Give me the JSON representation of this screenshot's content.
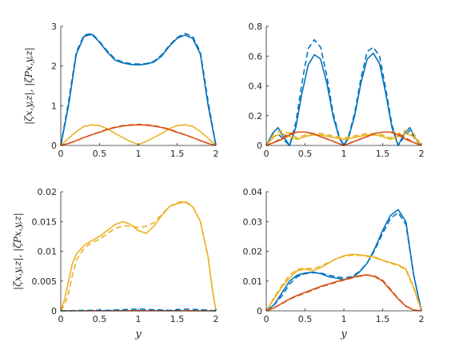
{
  "colors": {
    "blue": "#0072BD",
    "orange": "#D95319",
    "yellow": "#EDB120",
    "axis": "#262626"
  },
  "chart_data": [
    {
      "type": "line",
      "xlim": [
        0,
        2
      ],
      "ylim": [
        0,
        3
      ],
      "xticks": [
        "0",
        "0.5",
        "1",
        "1.5",
        "2"
      ],
      "yticks": [
        "0",
        "1",
        "2",
        "3"
      ],
      "ylabel": "|ζx,y,z|, |ζPx,y,z|",
      "xlabel": "",
      "series": [
        {
          "color": "blue",
          "dash": false,
          "x": [
            0,
            0.1,
            0.2,
            0.3,
            0.4,
            0.5,
            0.6,
            0.7,
            0.8,
            0.9,
            1,
            1.1,
            1.2,
            1.3,
            1.4,
            1.5,
            1.6,
            1.7,
            1.8,
            1.9,
            2
          ],
          "y": [
            0,
            1.0,
            2.3,
            2.75,
            2.8,
            2.6,
            2.35,
            2.15,
            2.08,
            2.04,
            2.03,
            2.05,
            2.1,
            2.25,
            2.5,
            2.7,
            2.78,
            2.7,
            2.3,
            1.0,
            0
          ]
        },
        {
          "color": "blue",
          "dash": true,
          "x": [
            0,
            0.1,
            0.2,
            0.3,
            0.4,
            0.5,
            0.6,
            0.7,
            0.8,
            0.9,
            1,
            1.1,
            1.2,
            1.3,
            1.4,
            1.5,
            1.6,
            1.7,
            1.8,
            1.9,
            2
          ],
          "y": [
            0,
            1.1,
            2.35,
            2.78,
            2.82,
            2.62,
            2.38,
            2.18,
            2.1,
            2.06,
            2.05,
            2.06,
            2.12,
            2.28,
            2.52,
            2.72,
            2.82,
            2.75,
            2.35,
            1.1,
            0
          ]
        },
        {
          "color": "yellow",
          "dash": false,
          "x": [
            0,
            0.1,
            0.2,
            0.3,
            0.4,
            0.5,
            0.6,
            0.7,
            0.8,
            0.9,
            1,
            1.1,
            1.2,
            1.3,
            1.4,
            1.5,
            1.6,
            1.7,
            1.8,
            1.9,
            2
          ],
          "y": [
            0,
            0.18,
            0.35,
            0.48,
            0.52,
            0.5,
            0.42,
            0.3,
            0.2,
            0.1,
            0.02,
            0.1,
            0.2,
            0.3,
            0.42,
            0.5,
            0.52,
            0.48,
            0.35,
            0.18,
            0
          ]
        },
        {
          "color": "orange",
          "dash": false,
          "x": [
            0,
            0.1,
            0.2,
            0.3,
            0.4,
            0.5,
            0.6,
            0.7,
            0.8,
            0.9,
            1,
            1.1,
            1.2,
            1.3,
            1.4,
            1.5,
            1.6,
            1.7,
            1.8,
            1.9,
            2
          ],
          "y": [
            0,
            0.05,
            0.12,
            0.2,
            0.27,
            0.33,
            0.4,
            0.45,
            0.49,
            0.51,
            0.52,
            0.51,
            0.49,
            0.45,
            0.4,
            0.33,
            0.27,
            0.2,
            0.12,
            0.05,
            0
          ]
        },
        {
          "color": "orange",
          "dash": true,
          "x": [
            0,
            0.1,
            0.2,
            0.3,
            0.4,
            0.5,
            0.6,
            0.7,
            0.8,
            0.9,
            1,
            1.1,
            1.2,
            1.3,
            1.4,
            1.5,
            1.6,
            1.7,
            1.8,
            1.9,
            2
          ],
          "y": [
            0,
            0.05,
            0.12,
            0.2,
            0.27,
            0.34,
            0.41,
            0.46,
            0.5,
            0.52,
            0.53,
            0.52,
            0.5,
            0.46,
            0.41,
            0.34,
            0.27,
            0.2,
            0.12,
            0.05,
            0
          ]
        }
      ]
    },
    {
      "type": "line",
      "xlim": [
        0,
        2
      ],
      "ylim": [
        0,
        0.8
      ],
      "xticks": [
        "0",
        "0.5",
        "1",
        "1.5",
        "2"
      ],
      "yticks": [
        "0",
        "0.2",
        "0.4",
        "0.6",
        "0.8"
      ],
      "ylabel": "",
      "xlabel": "",
      "series": [
        {
          "color": "blue",
          "dash": false,
          "x": [
            0,
            0.08,
            0.15,
            0.22,
            0.3,
            0.38,
            0.46,
            0.54,
            0.62,
            0.7,
            0.78,
            0.86,
            0.94,
            1,
            1.06,
            1.14,
            1.22,
            1.3,
            1.38,
            1.46,
            1.54,
            1.62,
            1.7,
            1.78,
            1.85,
            1.92,
            2
          ],
          "y": [
            0,
            0.08,
            0.12,
            0.06,
            0.0,
            0.12,
            0.35,
            0.54,
            0.61,
            0.58,
            0.42,
            0.2,
            0.05,
            0,
            0.05,
            0.2,
            0.42,
            0.58,
            0.62,
            0.55,
            0.35,
            0.12,
            0,
            0.08,
            0.12,
            0.05,
            0
          ]
        },
        {
          "color": "blue",
          "dash": true,
          "x": [
            0,
            0.08,
            0.15,
            0.22,
            0.3,
            0.38,
            0.46,
            0.54,
            0.62,
            0.7,
            0.78,
            0.86,
            0.94,
            1,
            1.06,
            1.14,
            1.22,
            1.3,
            1.38,
            1.46,
            1.54,
            1.62,
            1.7,
            1.78,
            1.85,
            1.92,
            2
          ],
          "y": [
            0,
            0.05,
            0.08,
            0.04,
            0.0,
            0.15,
            0.42,
            0.65,
            0.71,
            0.66,
            0.47,
            0.22,
            0.06,
            0,
            0.06,
            0.22,
            0.45,
            0.63,
            0.66,
            0.6,
            0.38,
            0.14,
            0,
            0.06,
            0.1,
            0.04,
            0
          ]
        },
        {
          "color": "yellow",
          "dash": false,
          "x": [
            0,
            0.1,
            0.2,
            0.3,
            0.4,
            0.5,
            0.6,
            0.7,
            0.8,
            0.9,
            1,
            1.1,
            1.2,
            1.3,
            1.4,
            1.5,
            1.6,
            1.7,
            1.8,
            1.9,
            2
          ],
          "y": [
            0,
            0.06,
            0.08,
            0.06,
            0.04,
            0.06,
            0.07,
            0.07,
            0.06,
            0.05,
            0.04,
            0.05,
            0.06,
            0.07,
            0.07,
            0.06,
            0.04,
            0.06,
            0.08,
            0.06,
            0
          ]
        },
        {
          "color": "yellow",
          "dash": true,
          "x": [
            0,
            0.1,
            0.2,
            0.3,
            0.4,
            0.5,
            0.6,
            0.7,
            0.8,
            0.9,
            1,
            1.1,
            1.2,
            1.3,
            1.4,
            1.5,
            1.6,
            1.7,
            1.8,
            1.9,
            2
          ],
          "y": [
            0,
            0.08,
            0.1,
            0.08,
            0.05,
            0.07,
            0.08,
            0.08,
            0.07,
            0.06,
            0.05,
            0.06,
            0.07,
            0.08,
            0.08,
            0.07,
            0.05,
            0.08,
            0.1,
            0.08,
            0
          ]
        },
        {
          "color": "orange",
          "dash": false,
          "x": [
            0,
            0.1,
            0.2,
            0.3,
            0.4,
            0.5,
            0.6,
            0.7,
            0.8,
            0.9,
            1,
            1.1,
            1.2,
            1.3,
            1.4,
            1.5,
            1.6,
            1.7,
            1.8,
            1.9,
            2
          ],
          "y": [
            0,
            0.02,
            0.04,
            0.07,
            0.09,
            0.09,
            0.08,
            0.06,
            0.04,
            0.02,
            0,
            0.02,
            0.04,
            0.06,
            0.08,
            0.09,
            0.09,
            0.07,
            0.04,
            0.02,
            0
          ]
        },
        {
          "color": "orange",
          "dash": true,
          "x": [
            0,
            0.1,
            0.2,
            0.3,
            0.4,
            0.5,
            0.6,
            0.7,
            0.8,
            0.9,
            1,
            1.1,
            1.2,
            1.3,
            1.4,
            1.5,
            1.6,
            1.7,
            1.8,
            1.9,
            2
          ],
          "y": [
            0,
            0.02,
            0.05,
            0.08,
            0.09,
            0.09,
            0.08,
            0.06,
            0.04,
            0.02,
            0,
            0.02,
            0.04,
            0.06,
            0.08,
            0.09,
            0.09,
            0.08,
            0.05,
            0.02,
            0
          ]
        }
      ]
    },
    {
      "type": "line",
      "xlim": [
        0,
        2
      ],
      "ylim": [
        0,
        0.02
      ],
      "xticks": [
        "0",
        "0.5",
        "1",
        "1.5",
        "2"
      ],
      "yticks": [
        "0",
        "0.005",
        "0.01",
        "0.015",
        "0.02"
      ],
      "ylabel": "|ζx,y,z|, |ζPx,y,z|",
      "xlabel": "y",
      "series": [
        {
          "color": "yellow",
          "dash": false,
          "x": [
            0,
            0.05,
            0.1,
            0.15,
            0.2,
            0.3,
            0.4,
            0.5,
            0.6,
            0.7,
            0.8,
            0.9,
            1,
            1.1,
            1.2,
            1.3,
            1.4,
            1.5,
            1.6,
            1.7,
            1.8,
            1.9,
            1.95,
            2
          ],
          "y": [
            0,
            0.002,
            0.005,
            0.008,
            0.0095,
            0.011,
            0.0118,
            0.0125,
            0.0135,
            0.0145,
            0.015,
            0.0145,
            0.0135,
            0.013,
            0.0142,
            0.016,
            0.0175,
            0.018,
            0.0183,
            0.0175,
            0.015,
            0.009,
            0.004,
            0
          ]
        },
        {
          "color": "yellow",
          "dash": true,
          "x": [
            0,
            0.05,
            0.1,
            0.15,
            0.2,
            0.3,
            0.4,
            0.5,
            0.6,
            0.7,
            0.8,
            0.9,
            1,
            1.1,
            1.2,
            1.3,
            1.4,
            1.5,
            1.6,
            1.7,
            1.8,
            1.9,
            1.95,
            2
          ],
          "y": [
            0,
            0.001,
            0.003,
            0.006,
            0.0085,
            0.0105,
            0.0115,
            0.012,
            0.013,
            0.0138,
            0.0143,
            0.0142,
            0.014,
            0.0142,
            0.0148,
            0.0162,
            0.0175,
            0.0182,
            0.0184,
            0.0176,
            0.015,
            0.009,
            0.004,
            0
          ]
        },
        {
          "color": "orange",
          "dash": false,
          "x": [
            0,
            0.5,
            1,
            1.5,
            2
          ],
          "y": [
            0,
            2e-05,
            3e-05,
            2e-05,
            0
          ]
        },
        {
          "color": "blue",
          "dash": true,
          "x": [
            0,
            0.2,
            0.4,
            0.6,
            0.8,
            1,
            1.2,
            1.4,
            1.6,
            1.8,
            2
          ],
          "y": [
            0,
            5e-05,
            0.0001,
            8e-05,
            0.0002,
            0.0003,
            0.0002,
            8e-05,
            0.0003,
            0.0002,
            0
          ]
        }
      ]
    },
    {
      "type": "line",
      "xlim": [
        0,
        2
      ],
      "ylim": [
        0,
        0.04
      ],
      "xticks": [
        "0",
        "0.5",
        "1",
        "1.5",
        "2"
      ],
      "yticks": [
        "0",
        "0.01",
        "0.02",
        "0.03",
        "0.04"
      ],
      "ylabel": "",
      "xlabel": "y",
      "series": [
        {
          "color": "blue",
          "dash": false,
          "x": [
            0,
            0.1,
            0.2,
            0.3,
            0.4,
            0.5,
            0.6,
            0.7,
            0.8,
            0.9,
            1,
            1.1,
            1.2,
            1.3,
            1.4,
            1.5,
            1.6,
            1.7,
            1.8,
            1.9,
            2
          ],
          "y": [
            0,
            0.002,
            0.006,
            0.01,
            0.012,
            0.0127,
            0.013,
            0.0125,
            0.0115,
            0.011,
            0.0105,
            0.011,
            0.013,
            0.016,
            0.021,
            0.027,
            0.032,
            0.034,
            0.03,
            0.012,
            0
          ]
        },
        {
          "color": "blue",
          "dash": true,
          "x": [
            0,
            0.1,
            0.2,
            0.3,
            0.4,
            0.5,
            0.6,
            0.7,
            0.8,
            0.9,
            1,
            1.1,
            1.2,
            1.3,
            1.4,
            1.5,
            1.6,
            1.7,
            1.8,
            1.9,
            2
          ],
          "y": [
            0,
            0.002,
            0.005,
            0.009,
            0.0115,
            0.0125,
            0.0128,
            0.0127,
            0.012,
            0.0115,
            0.011,
            0.0115,
            0.0132,
            0.016,
            0.0205,
            0.026,
            0.031,
            0.033,
            0.029,
            0.012,
            0
          ]
        },
        {
          "color": "yellow",
          "dash": false,
          "x": [
            0,
            0.1,
            0.2,
            0.3,
            0.4,
            0.5,
            0.6,
            0.7,
            0.8,
            0.9,
            1,
            1.1,
            1.2,
            1.3,
            1.4,
            1.5,
            1.6,
            1.7,
            1.8,
            1.9,
            2
          ],
          "y": [
            0,
            0.004,
            0.008,
            0.011,
            0.0135,
            0.014,
            0.0135,
            0.0145,
            0.016,
            0.0175,
            0.0185,
            0.019,
            0.0188,
            0.0185,
            0.018,
            0.017,
            0.0162,
            0.0155,
            0.014,
            0.008,
            0
          ]
        },
        {
          "color": "yellow",
          "dash": true,
          "x": [
            0,
            0.1,
            0.2,
            0.3,
            0.4,
            0.5,
            0.6,
            0.7,
            0.8,
            0.9,
            1,
            1.1,
            1.2,
            1.3,
            1.4,
            1.5,
            1.6,
            1.7,
            1.8,
            1.9,
            2
          ],
          "y": [
            0,
            0.0045,
            0.0085,
            0.012,
            0.014,
            0.0143,
            0.0142,
            0.015,
            0.0162,
            0.0175,
            0.0183,
            0.0187,
            0.0186,
            0.0183,
            0.0178,
            0.0169,
            0.016,
            0.0152,
            0.0138,
            0.0075,
            0
          ]
        },
        {
          "color": "orange",
          "dash": false,
          "x": [
            0,
            0.1,
            0.2,
            0.3,
            0.4,
            0.5,
            0.6,
            0.7,
            0.8,
            0.9,
            1,
            1.1,
            1.2,
            1.3,
            1.4,
            1.5,
            1.6,
            1.7,
            1.8,
            1.9,
            2
          ],
          "y": [
            0,
            0.001,
            0.0025,
            0.004,
            0.0052,
            0.0062,
            0.0072,
            0.0082,
            0.009,
            0.0098,
            0.0105,
            0.0112,
            0.0118,
            0.0121,
            0.0115,
            0.01,
            0.007,
            0.004,
            0.0015,
            0.0003,
            0
          ]
        },
        {
          "color": "orange",
          "dash": true,
          "x": [
            0,
            0.1,
            0.2,
            0.3,
            0.4,
            0.5,
            0.6,
            0.7,
            0.8,
            0.9,
            1,
            1.1,
            1.2,
            1.3,
            1.4,
            1.5,
            1.6,
            1.7,
            1.8,
            1.9,
            2
          ],
          "y": [
            0,
            0.001,
            0.0024,
            0.0039,
            0.005,
            0.006,
            0.007,
            0.008,
            0.0088,
            0.0096,
            0.0103,
            0.011,
            0.0116,
            0.012,
            0.0117,
            0.0103,
            0.0073,
            0.0042,
            0.0016,
            0.0003,
            0
          ]
        }
      ]
    }
  ]
}
